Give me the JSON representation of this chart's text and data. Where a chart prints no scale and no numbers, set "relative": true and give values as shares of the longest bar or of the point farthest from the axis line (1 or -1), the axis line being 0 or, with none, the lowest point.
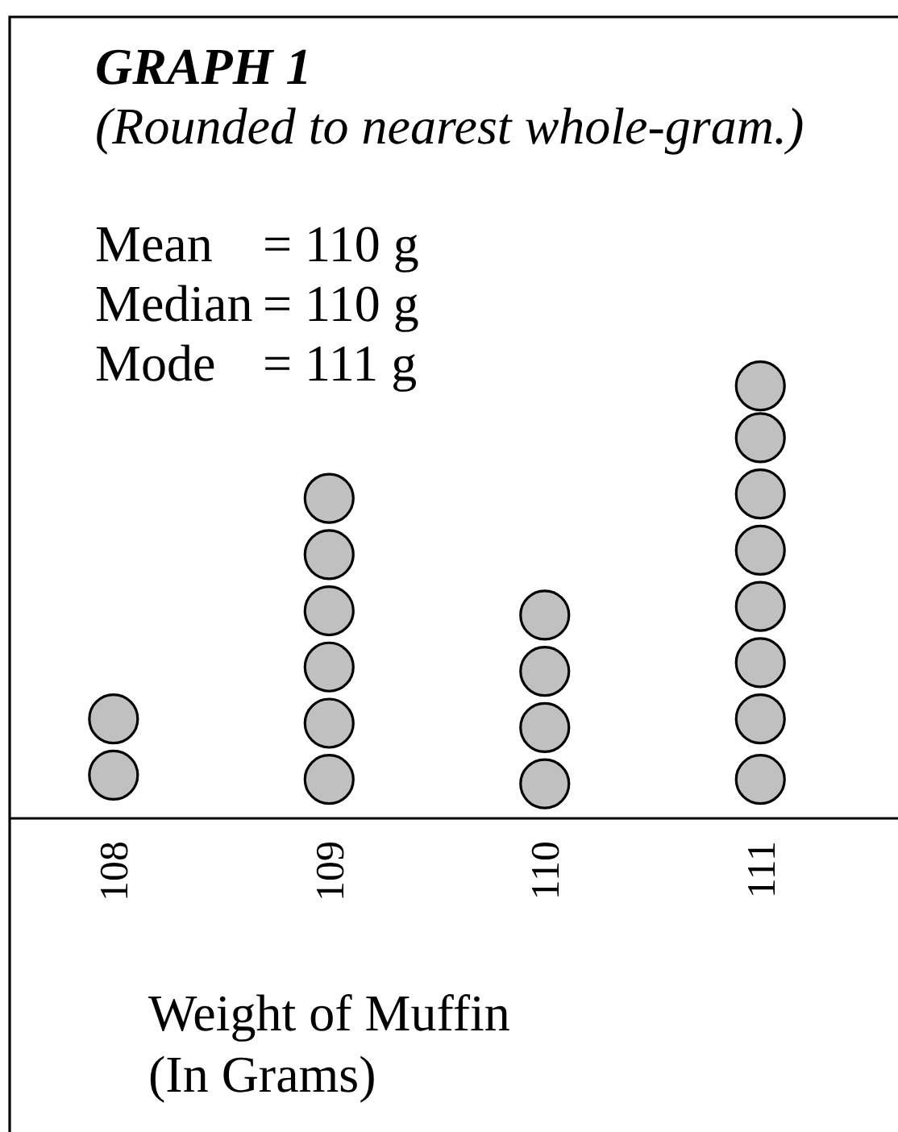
{
  "chart_data": {
    "type": "scatter",
    "title": "GRAPH 1",
    "subtitle": "(Rounded to nearest whole-gram.)",
    "annotations": [
      "Mean = 110 g",
      "Median = 110 g",
      "Mode = 111 g"
    ],
    "xlabel": "Weight of Muffin\n(In Grams)",
    "categories": [
      "108",
      "109",
      "110",
      "111"
    ],
    "series": [
      {
        "color": "#c0c0c0",
        "x": [
          "108",
          "108",
          "109",
          "109",
          "109",
          "109",
          "109",
          "109",
          "110",
          "110",
          "110",
          "110",
          "111",
          "111",
          "111",
          "111",
          "111",
          "111",
          "111",
          "111"
        ],
        "values": [
          0.1,
          0.23,
          0.09,
          0.22,
          0.35,
          0.48,
          0.61,
          0.74,
          0.08,
          0.21,
          0.34,
          0.47,
          0.09,
          0.23,
          0.36,
          0.49,
          0.62,
          0.75,
          0.88,
          1
        ]
      }
    ],
    "relative": true,
    "marker": "circle",
    "tick_labels": "x"
  }
}
